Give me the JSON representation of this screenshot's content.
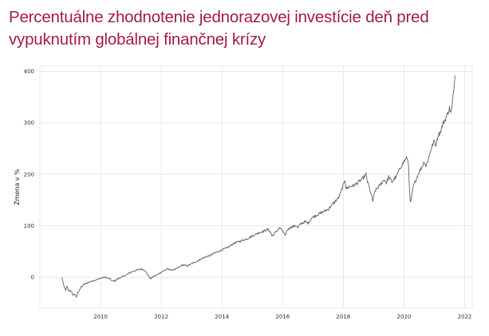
{
  "chart_data": {
    "type": "line",
    "title": "Percentuálne zhodnotenie jednorazovej investície deň pred vypuknutím globálnej finančnej krízy",
    "xlabel": "",
    "ylabel": "Zmena v %",
    "x_ticks": [
      "2010",
      "2012",
      "2014",
      "2016",
      "2018",
      "2020",
      "2022"
    ],
    "y_ticks": [
      "0",
      "100",
      "200",
      "300",
      "400"
    ],
    "xlim": [
      2008.0,
      2022.25
    ],
    "ylim": [
      -60,
      410
    ],
    "grid": true,
    "line_color": "#6e6e6e",
    "series": [
      {
        "name": "",
        "points": [
          [
            2008.72,
            0
          ],
          [
            2008.76,
            -8
          ],
          [
            2008.8,
            -20
          ],
          [
            2008.85,
            -25
          ],
          [
            2008.9,
            -18
          ],
          [
            2008.95,
            -28
          ],
          [
            2009.0,
            -24
          ],
          [
            2009.05,
            -30
          ],
          [
            2009.1,
            -35
          ],
          [
            2009.15,
            -32
          ],
          [
            2009.2,
            -40
          ],
          [
            2009.25,
            -30
          ],
          [
            2009.35,
            -20
          ],
          [
            2009.45,
            -14
          ],
          [
            2009.6,
            -10
          ],
          [
            2009.75,
            -7
          ],
          [
            2009.9,
            -4
          ],
          [
            2010.0,
            -2
          ],
          [
            2010.15,
            0
          ],
          [
            2010.3,
            -3
          ],
          [
            2010.4,
            -8
          ],
          [
            2010.5,
            -6
          ],
          [
            2010.6,
            -2
          ],
          [
            2010.8,
            3
          ],
          [
            2011.0,
            10
          ],
          [
            2011.2,
            14
          ],
          [
            2011.35,
            16
          ],
          [
            2011.45,
            14
          ],
          [
            2011.55,
            5
          ],
          [
            2011.65,
            -3
          ],
          [
            2011.75,
            2
          ],
          [
            2011.85,
            4
          ],
          [
            2012.0,
            10
          ],
          [
            2012.2,
            16
          ],
          [
            2012.35,
            14
          ],
          [
            2012.5,
            16
          ],
          [
            2012.7,
            24
          ],
          [
            2012.85,
            22
          ],
          [
            2013.0,
            26
          ],
          [
            2013.2,
            32
          ],
          [
            2013.4,
            38
          ],
          [
            2013.6,
            42
          ],
          [
            2013.8,
            48
          ],
          [
            2014.0,
            53
          ],
          [
            2014.2,
            58
          ],
          [
            2014.4,
            66
          ],
          [
            2014.6,
            70
          ],
          [
            2014.8,
            74
          ],
          [
            2015.0,
            80
          ],
          [
            2015.2,
            86
          ],
          [
            2015.4,
            90
          ],
          [
            2015.5,
            93
          ],
          [
            2015.6,
            88
          ],
          [
            2015.65,
            80
          ],
          [
            2015.75,
            86
          ],
          [
            2015.9,
            96
          ],
          [
            2016.0,
            90
          ],
          [
            2016.08,
            80
          ],
          [
            2016.15,
            92
          ],
          [
            2016.3,
            98
          ],
          [
            2016.45,
            100
          ],
          [
            2016.5,
            96
          ],
          [
            2016.6,
            104
          ],
          [
            2016.75,
            108
          ],
          [
            2016.85,
            105
          ],
          [
            2016.95,
            115
          ],
          [
            2017.1,
            120
          ],
          [
            2017.3,
            126
          ],
          [
            2017.5,
            132
          ],
          [
            2017.7,
            145
          ],
          [
            2017.85,
            155
          ],
          [
            2018.0,
            178
          ],
          [
            2018.05,
            190
          ],
          [
            2018.1,
            172
          ],
          [
            2018.2,
            176
          ],
          [
            2018.35,
            178
          ],
          [
            2018.5,
            185
          ],
          [
            2018.65,
            192
          ],
          [
            2018.75,
            200
          ],
          [
            2018.8,
            185
          ],
          [
            2018.9,
            165
          ],
          [
            2018.97,
            148
          ],
          [
            2019.05,
            168
          ],
          [
            2019.2,
            178
          ],
          [
            2019.35,
            190
          ],
          [
            2019.42,
            183
          ],
          [
            2019.5,
            195
          ],
          [
            2019.6,
            185
          ],
          [
            2019.75,
            196
          ],
          [
            2019.9,
            215
          ],
          [
            2020.0,
            225
          ],
          [
            2020.1,
            232
          ],
          [
            2020.15,
            220
          ],
          [
            2020.18,
            170
          ],
          [
            2020.21,
            145
          ],
          [
            2020.24,
            150
          ],
          [
            2020.3,
            175
          ],
          [
            2020.4,
            190
          ],
          [
            2020.5,
            205
          ],
          [
            2020.6,
            215
          ],
          [
            2020.67,
            225
          ],
          [
            2020.72,
            216
          ],
          [
            2020.8,
            228
          ],
          [
            2020.87,
            245
          ],
          [
            2020.95,
            258
          ],
          [
            2021.0,
            265
          ],
          [
            2021.05,
            255
          ],
          [
            2021.12,
            275
          ],
          [
            2021.2,
            282
          ],
          [
            2021.28,
            298
          ],
          [
            2021.35,
            305
          ],
          [
            2021.42,
            315
          ],
          [
            2021.5,
            328
          ],
          [
            2021.55,
            318
          ],
          [
            2021.6,
            340
          ],
          [
            2021.66,
            378
          ],
          [
            2021.68,
            392
          ]
        ]
      }
    ]
  }
}
